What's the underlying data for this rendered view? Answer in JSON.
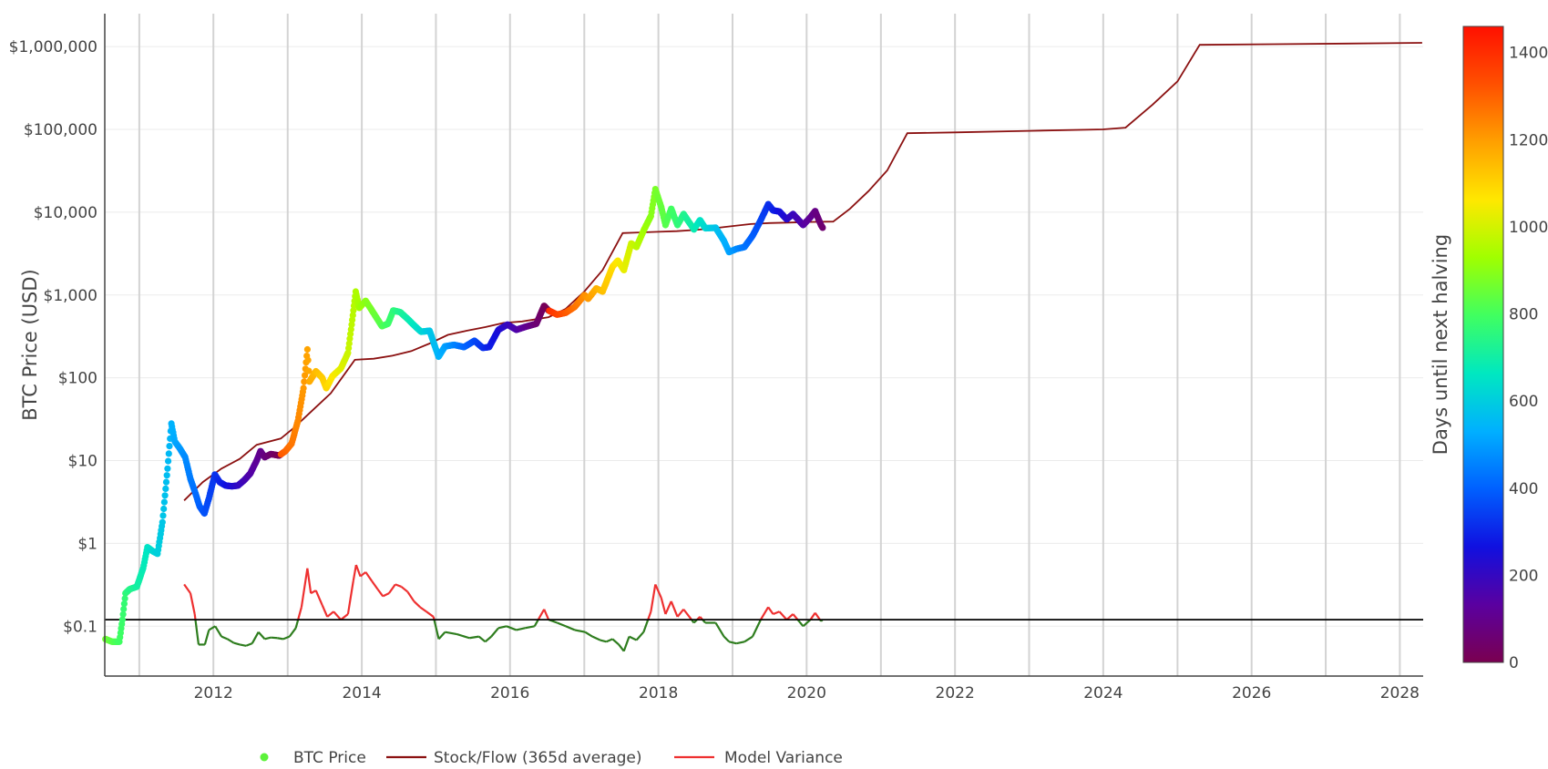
{
  "chart_data": {
    "type": "scatter",
    "ylabel": "BTC Price (USD)",
    "y_scale": "log",
    "x_ticks": [
      "2012",
      "2014",
      "2016",
      "2018",
      "2020",
      "2022",
      "2024",
      "2026",
      "2028"
    ],
    "y_ticks": [
      {
        "value": 0.1,
        "label": "$0.1"
      },
      {
        "value": 1,
        "label": "$1"
      },
      {
        "value": 10,
        "label": "$10"
      },
      {
        "value": 100,
        "label": "$100"
      },
      {
        "value": 1000,
        "label": "$1,000"
      },
      {
        "value": 10000,
        "label": "$10,000"
      },
      {
        "value": 100000,
        "label": "$100,000"
      },
      {
        "value": 1000000,
        "label": "$1,000,000"
      }
    ],
    "xlim": [
      "2010-07-15",
      "2028-04-25"
    ],
    "ylim": [
      0.025,
      2500000
    ],
    "variance_reference": 0.12,
    "colorbar": {
      "title": "Days until next halving",
      "range": [
        0,
        1460
      ],
      "ticks": [
        "0",
        "200",
        "400",
        "600",
        "800",
        "1000",
        "1200",
        "1400"
      ],
      "colorscale": [
        "#7a0050",
        "#5a00a0",
        "#1010e0",
        "#0060ff",
        "#00b0ff",
        "#00e8c0",
        "#40ff60",
        "#a0ff00",
        "#ffe800",
        "#ffa000",
        "#ff5000",
        "#ff1000"
      ]
    },
    "halvings": [
      "2012-11-28",
      "2016-07-09",
      "2020-05-11",
      "2024-04-20",
      "2028-04-10"
    ],
    "legend": [
      {
        "name": "BTC Price",
        "color": "#5cf23a"
      },
      {
        "name": "Stock/Flow (365d average)",
        "color": "#8b1111"
      },
      {
        "name": "Model Variance",
        "color": "#ee3030"
      }
    ],
    "price_series": [
      [
        "2010-07-18",
        0.07
      ],
      [
        "2010-08-20",
        0.065
      ],
      [
        "2010-09-25",
        0.065
      ],
      [
        "2010-10-10",
        0.12
      ],
      [
        "2010-10-25",
        0.25
      ],
      [
        "2010-11-15",
        0.28
      ],
      [
        "2010-12-20",
        0.3
      ],
      [
        "2011-01-20",
        0.5
      ],
      [
        "2011-02-10",
        0.9
      ],
      [
        "2011-03-10",
        0.8
      ],
      [
        "2011-04-01",
        0.75
      ],
      [
        "2011-04-25",
        1.8
      ],
      [
        "2011-05-20",
        8.0
      ],
      [
        "2011-06-08",
        28.0
      ],
      [
        "2011-06-25",
        17.0
      ],
      [
        "2011-07-20",
        14.0
      ],
      [
        "2011-08-15",
        11.0
      ],
      [
        "2011-09-10",
        6.0
      ],
      [
        "2011-10-05",
        4.0
      ],
      [
        "2011-10-25",
        2.8
      ],
      [
        "2011-11-18",
        2.3
      ],
      [
        "2011-12-10",
        3.5
      ],
      [
        "2012-01-08",
        6.8
      ],
      [
        "2012-02-01",
        5.5
      ],
      [
        "2012-03-01",
        5.0
      ],
      [
        "2012-04-01",
        4.9
      ],
      [
        "2012-05-01",
        5.0
      ],
      [
        "2012-06-01",
        5.8
      ],
      [
        "2012-07-01",
        7.0
      ],
      [
        "2012-08-01",
        10.0
      ],
      [
        "2012-08-20",
        13.0
      ],
      [
        "2012-09-10",
        11.0
      ],
      [
        "2012-10-10",
        12.0
      ],
      [
        "2012-11-20",
        11.5
      ],
      [
        "2012-12-20",
        13.0
      ],
      [
        "2013-01-20",
        16.0
      ],
      [
        "2013-02-20",
        30.0
      ],
      [
        "2013-03-20",
        75.0
      ],
      [
        "2013-04-08",
        220.0
      ],
      [
        "2013-04-18",
        90.0
      ],
      [
        "2013-05-20",
        120.0
      ],
      [
        "2013-06-20",
        100.0
      ],
      [
        "2013-07-10",
        75.0
      ],
      [
        "2013-08-10",
        105.0
      ],
      [
        "2013-09-20",
        130.0
      ],
      [
        "2013-10-25",
        200.0
      ],
      [
        "2013-11-15",
        500.0
      ],
      [
        "2013-12-02",
        1100.0
      ],
      [
        "2013-12-20",
        700.0
      ],
      [
        "2014-01-20",
        850.0
      ],
      [
        "2014-02-20",
        650.0
      ],
      [
        "2014-04-10",
        420.0
      ],
      [
        "2014-05-10",
        450.0
      ],
      [
        "2014-06-05",
        650.0
      ],
      [
        "2014-07-10",
        620.0
      ],
      [
        "2014-08-20",
        500.0
      ],
      [
        "2014-09-20",
        420.0
      ],
      [
        "2014-10-20",
        360.0
      ],
      [
        "2014-12-01",
        370.0
      ],
      [
        "2015-01-14",
        180.0
      ],
      [
        "2015-02-15",
        240.0
      ],
      [
        "2015-04-01",
        250.0
      ],
      [
        "2015-05-20",
        235.0
      ],
      [
        "2015-07-10",
        280.0
      ],
      [
        "2015-08-20",
        230.0
      ],
      [
        "2015-09-20",
        235.0
      ],
      [
        "2015-11-05",
        380.0
      ],
      [
        "2015-12-20",
        440.0
      ],
      [
        "2016-02-01",
        380.0
      ],
      [
        "2016-03-20",
        415.0
      ],
      [
        "2016-05-10",
        450.0
      ],
      [
        "2016-06-17",
        740.0
      ],
      [
        "2016-07-09",
        650.0
      ],
      [
        "2016-08-20",
        580.0
      ],
      [
        "2016-10-01",
        610.0
      ],
      [
        "2016-11-15",
        720.0
      ],
      [
        "2017-01-02",
        1000.0
      ],
      [
        "2017-01-20",
        900.0
      ],
      [
        "2017-03-01",
        1200.0
      ],
      [
        "2017-04-01",
        1100.0
      ],
      [
        "2017-05-20",
        2200.0
      ],
      [
        "2017-06-15",
        2600.0
      ],
      [
        "2017-07-15",
        2000.0
      ],
      [
        "2017-08-20",
        4200.0
      ],
      [
        "2017-09-15",
        3800.0
      ],
      [
        "2017-10-20",
        6000.0
      ],
      [
        "2017-11-25",
        9000.0
      ],
      [
        "2017-12-17",
        19000.0
      ],
      [
        "2018-01-15",
        11500.0
      ],
      [
        "2018-02-05",
        7000.0
      ],
      [
        "2018-03-05",
        11000.0
      ],
      [
        "2018-04-05",
        7000.0
      ],
      [
        "2018-05-05",
        9500.0
      ],
      [
        "2018-06-25",
        6200.0
      ],
      [
        "2018-07-25",
        8000.0
      ],
      [
        "2018-08-20",
        6400.0
      ],
      [
        "2018-10-10",
        6500.0
      ],
      [
        "2018-11-20",
        4500.0
      ],
      [
        "2018-12-15",
        3300.0
      ],
      [
        "2019-01-20",
        3600.0
      ],
      [
        "2019-03-01",
        3800.0
      ],
      [
        "2019-04-10",
        5200.0
      ],
      [
        "2019-05-20",
        8000.0
      ],
      [
        "2019-06-26",
        12500.0
      ],
      [
        "2019-07-20",
        10500.0
      ],
      [
        "2019-08-20",
        10200.0
      ],
      [
        "2019-09-25",
        8200.0
      ],
      [
        "2019-10-26",
        9500.0
      ],
      [
        "2019-12-15",
        7000.0
      ],
      [
        "2020-01-20",
        8700.0
      ],
      [
        "2020-02-12",
        10300.0
      ],
      [
        "2020-03-12",
        7000.0
      ],
      [
        "2020-03-20",
        6500.0
      ]
    ],
    "stock_flow_series": [
      [
        "2011-08-10",
        3.3
      ],
      [
        "2011-11-10",
        5.5
      ],
      [
        "2012-02-10",
        8.0
      ],
      [
        "2012-05-10",
        10.5
      ],
      [
        "2012-08-01",
        15.5
      ],
      [
        "2012-11-28",
        18.5
      ],
      [
        "2013-02-01",
        25.0
      ],
      [
        "2013-05-01",
        40.0
      ],
      [
        "2013-08-01",
        65.0
      ],
      [
        "2013-11-28",
        165.0
      ],
      [
        "2014-03-01",
        170.0
      ],
      [
        "2014-06-01",
        185.0
      ],
      [
        "2014-09-01",
        210.0
      ],
      [
        "2014-12-01",
        260.0
      ],
      [
        "2015-03-01",
        330.0
      ],
      [
        "2015-06-01",
        370.0
      ],
      [
        "2015-09-01",
        410.0
      ],
      [
        "2015-12-01",
        460.0
      ],
      [
        "2016-03-01",
        480.0
      ],
      [
        "2016-07-09",
        540.0
      ],
      [
        "2016-10-01",
        680.0
      ],
      [
        "2017-01-01",
        1100.0
      ],
      [
        "2017-04-01",
        2000.0
      ],
      [
        "2017-07-09",
        5600.0
      ],
      [
        "2017-10-01",
        5700.0
      ],
      [
        "2018-01-01",
        5800.0
      ],
      [
        "2018-04-01",
        5900.0
      ],
      [
        "2018-07-01",
        6100.0
      ],
      [
        "2018-10-01",
        6400.0
      ],
      [
        "2019-01-01",
        6800.0
      ],
      [
        "2019-04-01",
        7200.0
      ],
      [
        "2019-07-01",
        7400.0
      ],
      [
        "2019-10-01",
        7500.0
      ],
      [
        "2020-01-01",
        7600.0
      ],
      [
        "2020-05-11",
        7700.0
      ],
      [
        "2020-08-01",
        11000.0
      ],
      [
        "2020-11-01",
        18000.0
      ],
      [
        "2021-02-01",
        32000.0
      ],
      [
        "2021-05-11",
        90000.0
      ],
      [
        "2022-01-01",
        92000.0
      ],
      [
        "2023-01-01",
        96000.0
      ],
      [
        "2024-01-01",
        100000.0
      ],
      [
        "2024-04-20",
        105000.0
      ],
      [
        "2024-09-01",
        200000.0
      ],
      [
        "2025-01-01",
        380000.0
      ],
      [
        "2025-04-20",
        1050000.0
      ],
      [
        "2026-04-20",
        1070000.0
      ],
      [
        "2027-04-20",
        1090000.0
      ],
      [
        "2028-04-20",
        1110000.0
      ]
    ],
    "variance_series": [
      [
        "2011-08-10",
        0.32
      ],
      [
        "2011-09-10",
        0.25
      ],
      [
        "2011-10-01",
        0.14
      ],
      [
        "2011-10-20",
        0.06
      ],
      [
        "2011-11-20",
        0.06
      ],
      [
        "2011-12-10",
        0.09
      ],
      [
        "2012-01-10",
        0.1
      ],
      [
        "2012-02-10",
        0.075
      ],
      [
        "2012-03-10",
        0.07
      ],
      [
        "2012-04-10",
        0.063
      ],
      [
        "2012-05-10",
        0.06
      ],
      [
        "2012-06-10",
        0.058
      ],
      [
        "2012-07-10",
        0.062
      ],
      [
        "2012-08-10",
        0.085
      ],
      [
        "2012-09-10",
        0.07
      ],
      [
        "2012-10-10",
        0.073
      ],
      [
        "2012-11-10",
        0.072
      ],
      [
        "2012-12-10",
        0.07
      ],
      [
        "2013-01-10",
        0.075
      ],
      [
        "2013-02-10",
        0.095
      ],
      [
        "2013-03-10",
        0.17
      ],
      [
        "2013-04-08",
        0.5
      ],
      [
        "2013-04-25",
        0.25
      ],
      [
        "2013-05-20",
        0.27
      ],
      [
        "2013-06-20",
        0.18
      ],
      [
        "2013-07-15",
        0.13
      ],
      [
        "2013-08-15",
        0.15
      ],
      [
        "2013-09-20",
        0.12
      ],
      [
        "2013-10-25",
        0.14
      ],
      [
        "2013-11-20",
        0.35
      ],
      [
        "2013-12-04",
        0.55
      ],
      [
        "2013-12-25",
        0.4
      ],
      [
        "2014-01-20",
        0.45
      ],
      [
        "2014-02-20",
        0.35
      ],
      [
        "2014-03-20",
        0.28
      ],
      [
        "2014-04-15",
        0.23
      ],
      [
        "2014-05-15",
        0.25
      ],
      [
        "2014-06-15",
        0.32
      ],
      [
        "2014-07-15",
        0.3
      ],
      [
        "2014-08-15",
        0.26
      ],
      [
        "2014-09-15",
        0.2
      ],
      [
        "2014-10-15",
        0.17
      ],
      [
        "2014-11-15",
        0.15
      ],
      [
        "2014-12-20",
        0.13
      ],
      [
        "2015-01-15",
        0.07
      ],
      [
        "2015-02-15",
        0.085
      ],
      [
        "2015-04-15",
        0.08
      ],
      [
        "2015-06-15",
        0.072
      ],
      [
        "2015-08-01",
        0.075
      ],
      [
        "2015-09-01",
        0.065
      ],
      [
        "2015-10-01",
        0.075
      ],
      [
        "2015-11-05",
        0.095
      ],
      [
        "2015-12-15",
        0.1
      ],
      [
        "2016-02-01",
        0.09
      ],
      [
        "2016-03-15",
        0.095
      ],
      [
        "2016-05-01",
        0.1
      ],
      [
        "2016-06-17",
        0.16
      ],
      [
        "2016-07-09",
        0.12
      ],
      [
        "2016-08-20",
        0.11
      ],
      [
        "2016-10-01",
        0.1
      ],
      [
        "2016-11-15",
        0.09
      ],
      [
        "2017-01-05",
        0.085
      ],
      [
        "2017-02-10",
        0.075
      ],
      [
        "2017-03-20",
        0.068
      ],
      [
        "2017-04-20",
        0.065
      ],
      [
        "2017-05-20",
        0.07
      ],
      [
        "2017-06-20",
        0.06
      ],
      [
        "2017-07-15",
        0.05
      ],
      [
        "2017-08-10",
        0.075
      ],
      [
        "2017-09-15",
        0.068
      ],
      [
        "2017-10-20",
        0.085
      ],
      [
        "2017-11-25",
        0.15
      ],
      [
        "2017-12-17",
        0.32
      ],
      [
        "2018-01-15",
        0.22
      ],
      [
        "2018-02-05",
        0.14
      ],
      [
        "2018-03-05",
        0.2
      ],
      [
        "2018-04-05",
        0.13
      ],
      [
        "2018-05-05",
        0.16
      ],
      [
        "2018-06-25",
        0.11
      ],
      [
        "2018-07-25",
        0.13
      ],
      [
        "2018-08-20",
        0.11
      ],
      [
        "2018-10-10",
        0.11
      ],
      [
        "2018-11-20",
        0.075
      ],
      [
        "2018-12-15",
        0.065
      ],
      [
        "2019-01-20",
        0.062
      ],
      [
        "2019-03-01",
        0.065
      ],
      [
        "2019-04-10",
        0.075
      ],
      [
        "2019-05-20",
        0.12
      ],
      [
        "2019-06-26",
        0.17
      ],
      [
        "2019-07-20",
        0.14
      ],
      [
        "2019-08-20",
        0.15
      ],
      [
        "2019-09-25",
        0.12
      ],
      [
        "2019-10-26",
        0.14
      ],
      [
        "2019-12-15",
        0.1
      ],
      [
        "2020-01-20",
        0.12
      ],
      [
        "2020-02-12",
        0.145
      ],
      [
        "2020-03-12",
        0.115
      ],
      [
        "2020-03-20",
        0.12
      ]
    ]
  }
}
